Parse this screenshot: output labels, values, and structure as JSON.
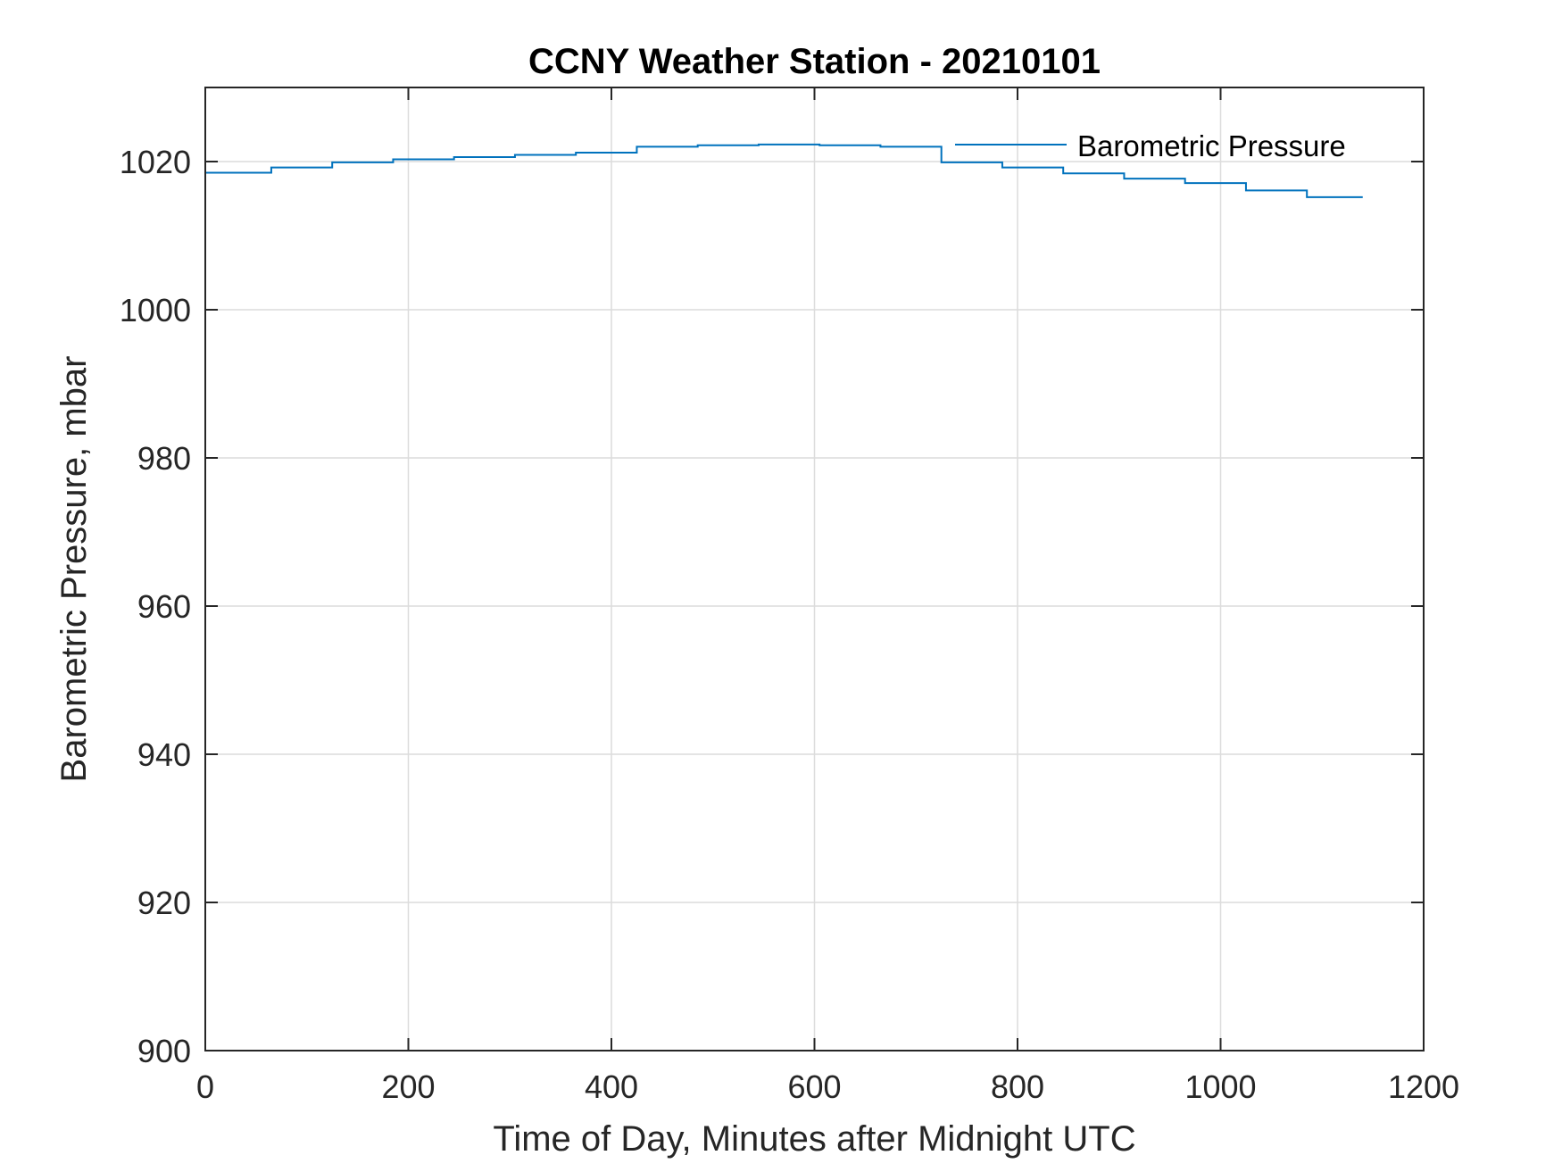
{
  "chart_data": {
    "type": "line",
    "title": "CCNY Weather Station - 20210101",
    "xlabel": "Time of Day, Minutes after Midnight UTC",
    "ylabel": "Barometric Pressure, mbar",
    "xlim": [
      0,
      1200
    ],
    "ylim": [
      900,
      1030
    ],
    "xticks": [
      0,
      200,
      400,
      600,
      800,
      1000,
      1200
    ],
    "xtick_labels": [
      "0",
      "200",
      "400",
      "600",
      "800",
      "1000",
      "1200"
    ],
    "yticks": [
      900,
      920,
      940,
      960,
      980,
      1000,
      1020
    ],
    "ytick_labels": [
      "900",
      "920",
      "940",
      "960",
      "980",
      "1000",
      "1020"
    ],
    "grid": true,
    "legend_position": "top-right",
    "series": [
      {
        "name": "Barometric Pressure",
        "color": "#0072BD",
        "step": true,
        "x": [
          0,
          65,
          125,
          185,
          245,
          305,
          365,
          425,
          485,
          545,
          605,
          665,
          725,
          785,
          845,
          905,
          965,
          1025,
          1085,
          1140
        ],
        "y": [
          1018.5,
          1019.2,
          1019.9,
          1020.3,
          1020.6,
          1020.9,
          1021.2,
          1022.0,
          1022.2,
          1022.3,
          1022.2,
          1022.0,
          1019.9,
          1019.2,
          1018.4,
          1017.7,
          1017.1,
          1016.1,
          1015.2,
          1015.2
        ]
      }
    ]
  }
}
